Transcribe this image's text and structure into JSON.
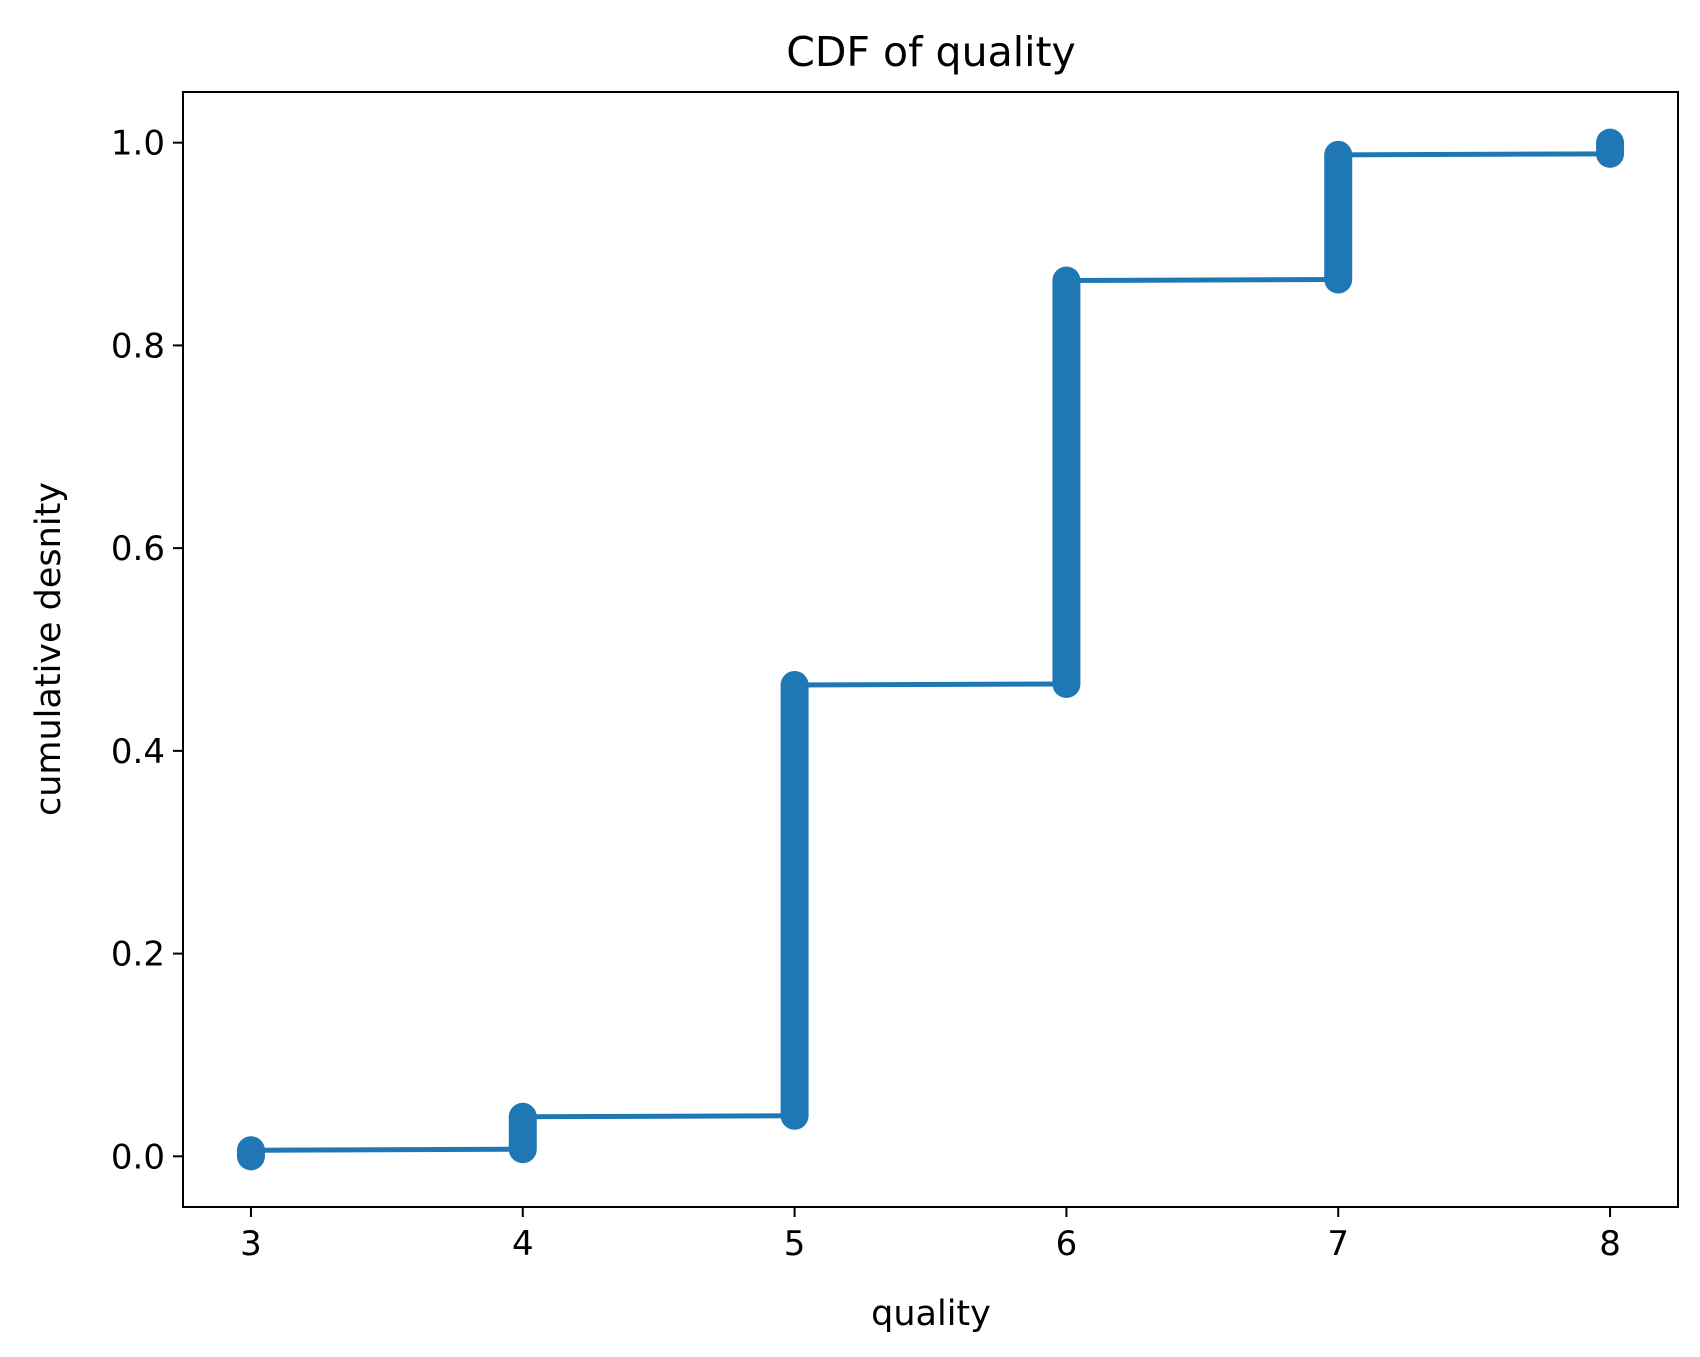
{
  "chart_data": {
    "type": "line",
    "title": "CDF of quality",
    "xlabel": "quality",
    "ylabel": "cumulative desnity",
    "xlim": [
      2.75,
      8.25
    ],
    "ylim": [
      -0.05,
      1.05
    ],
    "x_ticks": [
      3,
      4,
      5,
      6,
      7,
      8
    ],
    "x_tick_labels": [
      "3",
      "4",
      "5",
      "6",
      "7",
      "8"
    ],
    "y_ticks": [
      0.0,
      0.2,
      0.4,
      0.6,
      0.8,
      1.0
    ],
    "y_tick_labels": [
      "0.0",
      "0.2",
      "0.4",
      "0.6",
      "0.8",
      "1.0"
    ],
    "grid": false,
    "series": [
      {
        "color": "#1f77b4",
        "steps": [
          {
            "x": 3,
            "y_start": 0.0,
            "y_end": 0.006
          },
          {
            "x": 4,
            "y_start": 0.007,
            "y_end": 0.039
          },
          {
            "x": 5,
            "y_start": 0.04,
            "y_end": 0.465
          },
          {
            "x": 6,
            "y_start": 0.466,
            "y_end": 0.864
          },
          {
            "x": 7,
            "y_start": 0.865,
            "y_end": 0.988
          },
          {
            "x": 8,
            "y_start": 0.989,
            "y_end": 1.0
          }
        ]
      }
    ]
  }
}
